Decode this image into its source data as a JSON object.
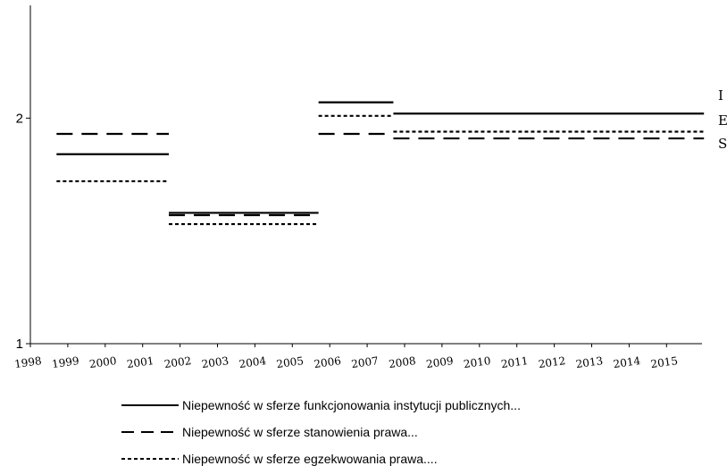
{
  "chart_data": {
    "type": "line",
    "x_start": 1998,
    "categories": [
      "1998",
      "1999",
      "2000",
      "2001",
      "2002",
      "2003",
      "2004",
      "2005",
      "2006",
      "2007",
      "2008",
      "2009",
      "2010",
      "2011",
      "2012",
      "2013",
      "2014",
      "2015"
    ],
    "y_ticks": [
      "1",
      "2"
    ],
    "ylim": [
      1,
      2.5
    ],
    "series": [
      {
        "name": "Niepewność w sferze funkcjonowania instytucji publicznych...",
        "style": "solid",
        "end_label": "I",
        "segments": [
          {
            "x": [
              1998.7,
              2001.7
            ],
            "y": 1.84
          },
          {
            "x": [
              2001.7,
              2005.7
            ],
            "y": 1.58
          },
          {
            "x": [
              2005.7,
              2007.7
            ],
            "y": 2.07
          },
          {
            "x": [
              2007.7,
              2016.0
            ],
            "y": 2.02
          }
        ]
      },
      {
        "name": "Niepewność w sferze stanowienia prawa...",
        "style": "dashed",
        "end_label": "S",
        "segments": [
          {
            "x": [
              1998.7,
              2001.7
            ],
            "y": 1.93
          },
          {
            "x": [
              2001.7,
              2005.7
            ],
            "y": 1.57
          },
          {
            "x": [
              2005.7,
              2007.7
            ],
            "y": 1.93
          },
          {
            "x": [
              2007.7,
              2016.0
            ],
            "y": 1.91
          }
        ]
      },
      {
        "name": "Niepewność w sferze egzekwowania prawa....",
        "style": "dotted",
        "end_label": "E",
        "segments": [
          {
            "x": [
              1998.7,
              2001.7
            ],
            "y": 1.72
          },
          {
            "x": [
              2001.7,
              2005.7
            ],
            "y": 1.53
          },
          {
            "x": [
              2005.7,
              2007.7
            ],
            "y": 2.01
          },
          {
            "x": [
              2007.7,
              2016.0
            ],
            "y": 1.94
          }
        ]
      }
    ]
  }
}
